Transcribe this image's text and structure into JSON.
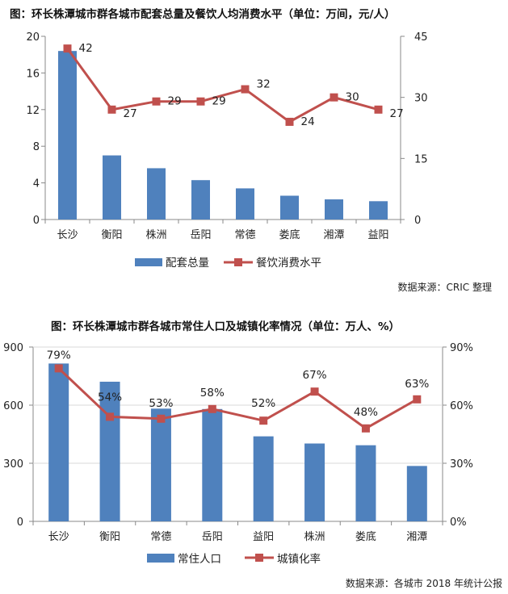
{
  "chart_data": [
    {
      "type": "bar",
      "title": "图：环长株潭城市群各城市配套总量及餐饮人均消费水平（单位：万间，元/人）",
      "categories": [
        "长沙",
        "衡阳",
        "株洲",
        "岳阳",
        "常德",
        "娄底",
        "湘潭",
        "益阳"
      ],
      "series": [
        {
          "name": "配套总量",
          "type": "bar",
          "axis": "left",
          "values": [
            18.4,
            7.0,
            5.6,
            4.3,
            3.4,
            2.6,
            2.2,
            2.0
          ],
          "color": "#4f81bd"
        },
        {
          "name": "餐饮消费水平",
          "type": "line",
          "axis": "right",
          "values": [
            42,
            27,
            29,
            29,
            32,
            24,
            30,
            27
          ],
          "labels": [
            "42",
            "27",
            "29",
            "29",
            "32",
            "24",
            "30",
            "27"
          ],
          "color": "#c0504d"
        }
      ],
      "ylim_left": [
        0,
        20
      ],
      "yticks_left": [
        "0",
        "4",
        "8",
        "12",
        "16",
        "20"
      ],
      "ylim_right": [
        0,
        45
      ],
      "yticks_right": [
        "0",
        "15",
        "30",
        "45"
      ],
      "legend_position": "bottom",
      "source": "数据来源：CRIC 整理"
    },
    {
      "type": "bar",
      "title": "图：环长株潭城市群各城市常住人口及城镇化率情况（单位：万人、%）",
      "categories": [
        "长沙",
        "衡阳",
        "常德",
        "岳阳",
        "益阳",
        "株洲",
        "娄底",
        "湘潭"
      ],
      "series": [
        {
          "name": "常住人口",
          "type": "bar",
          "axis": "left",
          "values": [
            815,
            721,
            582,
            580,
            439,
            402,
            393,
            286
          ],
          "color": "#4f81bd"
        },
        {
          "name": "城镇化率",
          "type": "line",
          "axis": "right",
          "values": [
            79,
            54,
            53,
            58,
            52,
            67,
            48,
            63
          ],
          "labels": [
            "79%",
            "54%",
            "53%",
            "58%",
            "52%",
            "67%",
            "48%",
            "63%"
          ],
          "color": "#c0504d"
        }
      ],
      "ylim_left": [
        0,
        900
      ],
      "yticks_left": [
        "0",
        "300",
        "600",
        "900"
      ],
      "ylim_right": [
        0,
        90
      ],
      "yticks_right": [
        "0%",
        "30%",
        "60%",
        "90%"
      ],
      "legend_position": "bottom",
      "source": "数据来源：各城市 2018 年统计公报"
    }
  ]
}
